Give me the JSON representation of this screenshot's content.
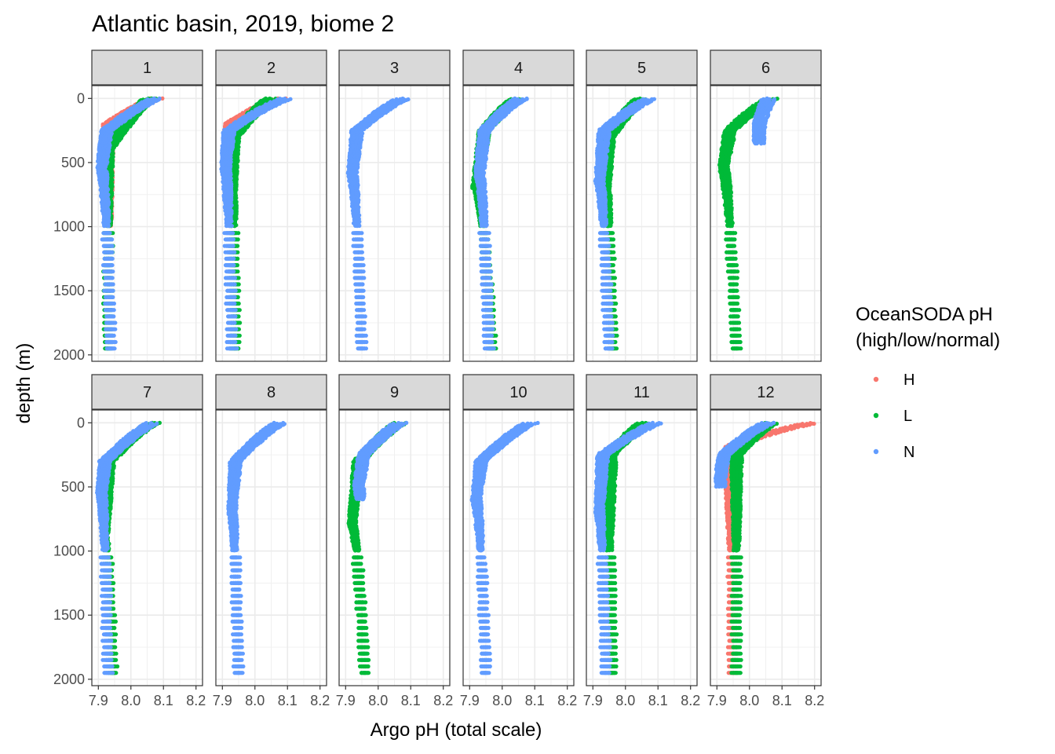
{
  "chart_data": {
    "type": "scatter",
    "title": "Atlantic basin, 2019, biome 2",
    "xlabel": "Argo pH (total scale)",
    "ylabel": "depth (m)",
    "xlim": [
      7.88,
      8.22
    ],
    "ylim": [
      2050,
      -100
    ],
    "x_ticks": [
      7.9,
      8.0,
      8.1,
      8.2
    ],
    "x_tick_labels": [
      "7.9",
      "8.0",
      "8.1",
      "8.2"
    ],
    "y_ticks": [
      0,
      500,
      1000,
      1500,
      2000
    ],
    "y_tick_labels": [
      "0",
      "500",
      "1000",
      "1500",
      "2000"
    ],
    "grid": true,
    "facet_layout": {
      "rows": 2,
      "cols": 6
    },
    "legend": {
      "title_lines": [
        "OceanSODA pH",
        "(high/low/normal)"
      ],
      "position": "right",
      "entries": [
        {
          "key": "H",
          "label": "H",
          "color": "#F8766D"
        },
        {
          "key": "L",
          "label": "L",
          "color": "#00BA38"
        },
        {
          "key": "N",
          "label": "N",
          "color": "#619CFF"
        }
      ]
    },
    "panels": [
      {
        "label": "1",
        "profiles": [
          {
            "series": "H",
            "surface_ph": 8.08,
            "deep_ph": 7.935,
            "min_ph": 7.93,
            "min_depth": 500,
            "cline_depth": 200,
            "max_depth": 1000
          },
          {
            "series": "L",
            "surface_ph": 8.06,
            "deep_ph": 7.93,
            "min_ph": 7.93,
            "min_depth": 900,
            "cline_depth": 400,
            "max_depth": 1950
          },
          {
            "series": "N",
            "surface_ph": 8.08,
            "deep_ph": 7.94,
            "min_ph": 7.91,
            "min_depth": 550,
            "cline_depth": 250,
            "max_depth": 1950
          }
        ]
      },
      {
        "label": "2",
        "profiles": [
          {
            "series": "H",
            "surface_ph": 8.08,
            "deep_ph": 7.925,
            "min_ph": 7.92,
            "min_depth": 500,
            "cline_depth": 200,
            "max_depth": 1000
          },
          {
            "series": "L",
            "surface_ph": 8.05,
            "deep_ph": 7.94,
            "min_ph": 7.93,
            "min_depth": 700,
            "cline_depth": 300,
            "max_depth": 1950
          },
          {
            "series": "N",
            "surface_ph": 8.1,
            "deep_ph": 7.93,
            "min_ph": 7.91,
            "min_depth": 550,
            "cline_depth": 250,
            "max_depth": 1950
          }
        ]
      },
      {
        "label": "3",
        "profiles": [
          {
            "series": "N",
            "surface_ph": 8.08,
            "deep_ph": 7.95,
            "min_ph": 7.92,
            "min_depth": 600,
            "cline_depth": 250,
            "max_depth": 1950
          }
        ]
      },
      {
        "label": "4",
        "profiles": [
          {
            "series": "L",
            "surface_ph": 8.05,
            "deep_ph": 7.97,
            "min_ph": 7.92,
            "min_depth": 700,
            "cline_depth": 250,
            "max_depth": 1950
          },
          {
            "series": "N",
            "surface_ph": 8.06,
            "deep_ph": 7.96,
            "min_ph": 7.93,
            "min_depth": 600,
            "cline_depth": 250,
            "max_depth": 1950
          }
        ]
      },
      {
        "label": "5",
        "profiles": [
          {
            "series": "L",
            "surface_ph": 8.05,
            "deep_ph": 7.96,
            "min_ph": 7.94,
            "min_depth": 700,
            "cline_depth": 300,
            "max_depth": 1950
          },
          {
            "series": "N",
            "surface_ph": 8.08,
            "deep_ph": 7.95,
            "min_ph": 7.92,
            "min_depth": 650,
            "cline_depth": 250,
            "max_depth": 1950
          }
        ]
      },
      {
        "label": "6",
        "profiles": [
          {
            "series": "L",
            "surface_ph": 8.07,
            "deep_ph": 7.96,
            "min_ph": 7.92,
            "min_depth": 550,
            "cline_depth": 250,
            "max_depth": 1950
          },
          {
            "series": "N",
            "surface_ph": 8.06,
            "deep_ph": 8.03,
            "min_ph": 8.03,
            "min_depth": 300,
            "cline_depth": 200,
            "max_depth": 350
          }
        ]
      },
      {
        "label": "7",
        "profiles": [
          {
            "series": "L",
            "surface_ph": 8.07,
            "deep_ph": 7.945,
            "min_ph": 7.92,
            "min_depth": 900,
            "cline_depth": 300,
            "max_depth": 1950
          },
          {
            "series": "N",
            "surface_ph": 8.07,
            "deep_ph": 7.93,
            "min_ph": 7.91,
            "min_depth": 550,
            "cline_depth": 300,
            "max_depth": 1950
          }
        ]
      },
      {
        "label": "8",
        "profiles": [
          {
            "series": "N",
            "surface_ph": 8.08,
            "deep_ph": 7.95,
            "min_ph": 7.93,
            "min_depth": 700,
            "cline_depth": 300,
            "max_depth": 1950
          }
        ]
      },
      {
        "label": "9",
        "profiles": [
          {
            "series": "L",
            "surface_ph": 8.07,
            "deep_ph": 7.96,
            "min_ph": 7.92,
            "min_depth": 800,
            "cline_depth": 300,
            "max_depth": 1950
          },
          {
            "series": "N",
            "surface_ph": 8.07,
            "deep_ph": 7.97,
            "min_ph": 7.94,
            "min_depth": 500,
            "cline_depth": 250,
            "max_depth": 600
          }
        ]
      },
      {
        "label": "10",
        "profiles": [
          {
            "series": "N",
            "surface_ph": 8.09,
            "deep_ph": 7.95,
            "min_ph": 7.92,
            "min_depth": 600,
            "cline_depth": 300,
            "max_depth": 1950
          }
        ]
      },
      {
        "label": "11",
        "profiles": [
          {
            "series": "L",
            "surface_ph": 8.06,
            "deep_ph": 7.96,
            "min_ph": 7.95,
            "min_depth": 1000,
            "cline_depth": 250,
            "max_depth": 1950
          },
          {
            "series": "N",
            "surface_ph": 8.1,
            "deep_ph": 7.94,
            "min_ph": 7.92,
            "min_depth": 700,
            "cline_depth": 250,
            "max_depth": 1950
          }
        ]
      },
      {
        "label": "12",
        "profiles": [
          {
            "series": "H",
            "surface_ph": 8.2,
            "deep_ph": 7.95,
            "min_ph": 7.94,
            "min_depth": 600,
            "cline_depth": 180,
            "max_depth": 1950
          },
          {
            "series": "L",
            "surface_ph": 8.07,
            "deep_ph": 7.96,
            "min_ph": 7.96,
            "min_depth": 800,
            "cline_depth": 250,
            "max_depth": 1950
          },
          {
            "series": "N",
            "surface_ph": 8.06,
            "deep_ph": 7.93,
            "min_ph": 7.91,
            "min_depth": 450,
            "cline_depth": 250,
            "max_depth": 500
          }
        ]
      }
    ]
  }
}
